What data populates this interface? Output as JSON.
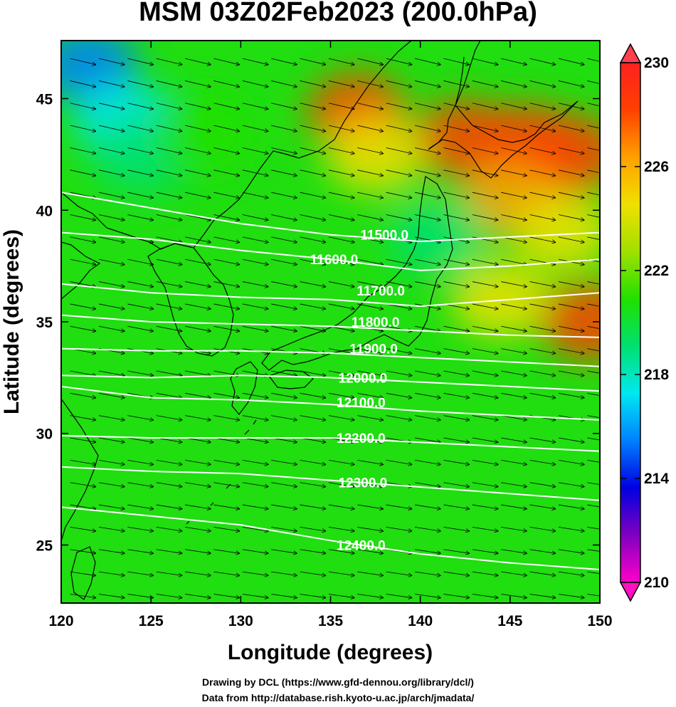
{
  "title": "MSM 03Z02Feb2023 (200.0hPa)",
  "chart_data": {
    "type": "heatmap",
    "title": "MSM 03Z02Feb2023 (200.0hPa)",
    "xlabel": "Longitude (degrees)",
    "ylabel": "Latitude  (degrees)",
    "xlim": [
      120,
      150
    ],
    "ylim": [
      22.4,
      47.6
    ],
    "x_ticks": [
      120,
      125,
      130,
      135,
      140,
      145,
      150
    ],
    "y_ticks": [
      25,
      30,
      35,
      40,
      45
    ],
    "colorbar": {
      "min": 210,
      "max": 230,
      "ticks": [
        210,
        214,
        218,
        222,
        226,
        230
      ],
      "colors": [
        "#ff00c8",
        "#8000c0",
        "#0000e0",
        "#0080ff",
        "#00e8f0",
        "#00e070",
        "#20e000",
        "#a0e000",
        "#f0e000",
        "#ffa000",
        "#ff4000",
        "#ff2020"
      ]
    },
    "contours": [
      {
        "label": "11500.0",
        "value": 11500,
        "label_lon": 138.0,
        "label_lat": 38.9,
        "points": [
          [
            120,
            40.8
          ],
          [
            125,
            40.1
          ],
          [
            130,
            39.4
          ],
          [
            135,
            38.9
          ],
          [
            140,
            38.6
          ],
          [
            145,
            38.8
          ],
          [
            150,
            39.0
          ]
        ]
      },
      {
        "label": "11600.0",
        "value": 11600,
        "label_lon": 135.2,
        "label_lat": 37.8,
        "points": [
          [
            120,
            39.0
          ],
          [
            125,
            38.7
          ],
          [
            130,
            38.2
          ],
          [
            135,
            37.8
          ],
          [
            140,
            37.3
          ],
          [
            145,
            37.5
          ],
          [
            150,
            37.8
          ]
        ]
      },
      {
        "label": "11700.0",
        "value": 11700,
        "label_lon": 137.8,
        "label_lat": 36.4,
        "points": [
          [
            120,
            36.7
          ],
          [
            125,
            36.3
          ],
          [
            130,
            36.1
          ],
          [
            135,
            36.0
          ],
          [
            140,
            35.7
          ],
          [
            145,
            36.0
          ],
          [
            150,
            36.3
          ]
        ]
      },
      {
        "label": "11800.0",
        "value": 11800,
        "label_lon": 137.5,
        "label_lat": 35.0,
        "points": [
          [
            120,
            35.3
          ],
          [
            125,
            35.0
          ],
          [
            130,
            34.9
          ],
          [
            135,
            34.8
          ],
          [
            140,
            34.6
          ],
          [
            145,
            34.4
          ],
          [
            150,
            34.3
          ]
        ]
      },
      {
        "label": "11900.0",
        "value": 11900,
        "label_lon": 137.4,
        "label_lat": 33.8,
        "points": [
          [
            120,
            33.8
          ],
          [
            125,
            33.7
          ],
          [
            130,
            33.7
          ],
          [
            135,
            33.6
          ],
          [
            140,
            33.4
          ],
          [
            145,
            33.2
          ],
          [
            150,
            33.0
          ]
        ]
      },
      {
        "label": "12000.0",
        "value": 12000,
        "label_lon": 136.8,
        "label_lat": 32.5,
        "points": [
          [
            120,
            32.6
          ],
          [
            125,
            32.5
          ],
          [
            130,
            32.6
          ],
          [
            135,
            32.5
          ],
          [
            140,
            32.3
          ],
          [
            145,
            32.1
          ],
          [
            150,
            31.9
          ]
        ]
      },
      {
        "label": "12100.0",
        "value": 12100,
        "label_lon": 136.7,
        "label_lat": 31.4,
        "points": [
          [
            120,
            32.1
          ],
          [
            125,
            31.6
          ],
          [
            130,
            31.5
          ],
          [
            135,
            31.3
          ],
          [
            140,
            31.0
          ],
          [
            145,
            30.8
          ],
          [
            150,
            30.6
          ]
        ]
      },
      {
        "label": "12200.0",
        "value": 12200,
        "label_lon": 136.7,
        "label_lat": 29.8,
        "points": [
          [
            120,
            29.9
          ],
          [
            125,
            29.8
          ],
          [
            130,
            29.8
          ],
          [
            135,
            29.8
          ],
          [
            140,
            29.6
          ],
          [
            145,
            29.4
          ],
          [
            150,
            29.2
          ]
        ]
      },
      {
        "label": "12300.0",
        "value": 12300,
        "label_lon": 136.8,
        "label_lat": 27.8,
        "points": [
          [
            120,
            28.5
          ],
          [
            125,
            28.3
          ],
          [
            130,
            28.2
          ],
          [
            135,
            27.9
          ],
          [
            140,
            27.6
          ],
          [
            145,
            27.3
          ],
          [
            150,
            27.0
          ]
        ]
      },
      {
        "label": "12400.0",
        "value": 12400,
        "label_lon": 136.7,
        "label_lat": 25.0,
        "points": [
          [
            120,
            26.7
          ],
          [
            125,
            26.3
          ],
          [
            130,
            25.9
          ],
          [
            135,
            25.2
          ],
          [
            140,
            24.6
          ],
          [
            145,
            24.2
          ],
          [
            150,
            23.9
          ]
        ]
      }
    ],
    "temperature_blobs": [
      {
        "lon": 136.5,
        "lat": 44.4,
        "value": 228
      },
      {
        "lon": 142.5,
        "lat": 43.2,
        "value": 229
      },
      {
        "lon": 146.0,
        "lat": 43.0,
        "value": 228
      },
      {
        "lon": 148.5,
        "lat": 42.5,
        "value": 228
      },
      {
        "lon": 145.0,
        "lat": 40.5,
        "value": 227
      },
      {
        "lon": 148.0,
        "lat": 39.0,
        "value": 225
      },
      {
        "lon": 144.5,
        "lat": 36.0,
        "value": 224
      },
      {
        "lon": 149.5,
        "lat": 35.0,
        "value": 228
      },
      {
        "lon": 137.5,
        "lat": 42.5,
        "value": 225
      },
      {
        "lon": 121.5,
        "lat": 46.5,
        "value": 216
      },
      {
        "lon": 123.5,
        "lat": 44.0,
        "value": 218
      },
      {
        "lon": 124.5,
        "lat": 42.5,
        "value": 219
      },
      {
        "lon": 128.0,
        "lat": 43.5,
        "value": 220
      },
      {
        "lon": 141.0,
        "lat": 38.8,
        "value": 219
      }
    ],
    "wind": {
      "direction": "westerly to west-northwesterly",
      "spacing_deg": 1.0
    }
  },
  "footer": {
    "line1": "Drawing by DCL (https://www.gfd-dennou.org/library/dcl/)",
    "line2": "Data from http://database.rish.kyoto-u.ac.jp/arch/jmadata/"
  }
}
